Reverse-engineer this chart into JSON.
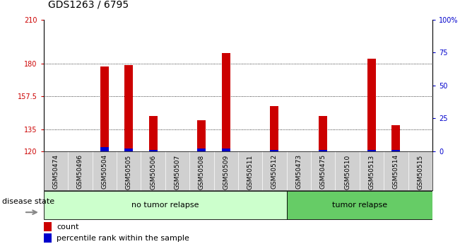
{
  "title": "GDS1263 / 6795",
  "samples": [
    "GSM50474",
    "GSM50496",
    "GSM50504",
    "GSM50505",
    "GSM50506",
    "GSM50507",
    "GSM50508",
    "GSM50509",
    "GSM50511",
    "GSM50512",
    "GSM50473",
    "GSM50475",
    "GSM50510",
    "GSM50513",
    "GSM50514",
    "GSM50515"
  ],
  "count_values": [
    120,
    120,
    178,
    179,
    144,
    120,
    141,
    187,
    120,
    151,
    120,
    144,
    120,
    183,
    138,
    120
  ],
  "percentile_values": [
    0,
    0,
    3,
    2,
    1,
    0,
    2,
    2,
    0,
    1,
    0,
    1,
    0,
    1,
    1,
    0
  ],
  "ymin": 120,
  "ymax": 210,
  "yticks": [
    120,
    135,
    157.5,
    180,
    210
  ],
  "ytick_labels": [
    "120",
    "135",
    "157.5",
    "180",
    "210"
  ],
  "right_yticks": [
    0,
    25,
    50,
    75,
    100
  ],
  "right_ytick_labels": [
    "0",
    "25",
    "50",
    "75",
    "100%"
  ],
  "grid_lines": [
    135,
    157.5,
    180
  ],
  "bar_color": "#cc0000",
  "percentile_color": "#0000cc",
  "bar_width": 0.35,
  "percentile_bar_width": 0.35,
  "no_tumor_indices": [
    0,
    1,
    2,
    3,
    4,
    5,
    6,
    7,
    8,
    9
  ],
  "tumor_indices": [
    10,
    11,
    12,
    13,
    14,
    15
  ],
  "no_tumor_label": "no tumor relapse",
  "tumor_label": "tumor relapse",
  "no_tumor_bg": "#ccffcc",
  "tumor_bg": "#66cc66",
  "sample_label_bg": "#d0d0d0",
  "disease_state_label": "disease state",
  "legend_count_label": "count",
  "legend_percentile_label": "percentile rank within the sample",
  "title_fontsize": 10,
  "tick_label_fontsize": 7,
  "sample_label_fontsize": 6.5,
  "left_tick_color": "#cc0000",
  "right_tick_color": "#0000cc"
}
